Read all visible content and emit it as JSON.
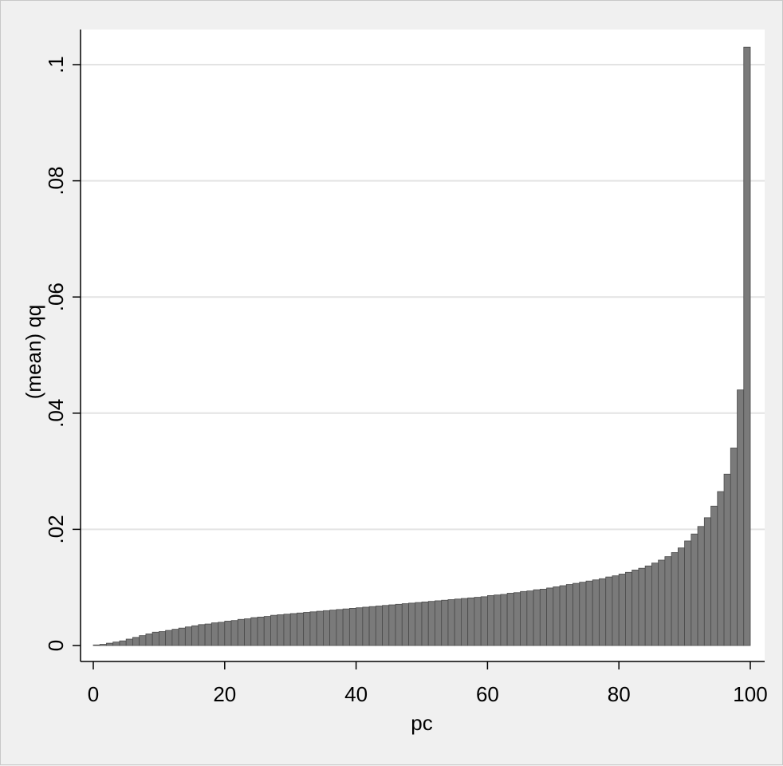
{
  "chart_data": {
    "type": "bar",
    "xlabel": "pc",
    "ylabel": "(mean) qq",
    "xlim": [
      0,
      100
    ],
    "ylim": [
      0,
      0.1
    ],
    "xticks": [
      0,
      20,
      40,
      60,
      80,
      100
    ],
    "xtick_labels": [
      "0",
      "20",
      "40",
      "60",
      "80",
      "100"
    ],
    "yticks": [
      0,
      0.02,
      0.04,
      0.06,
      0.08,
      0.1
    ],
    "ytick_labels": [
      "0",
      ".02",
      ".04",
      ".06",
      ".08",
      ".1"
    ],
    "grid": "horizontal",
    "legend": "none",
    "colors": {
      "bar_fill": "#7a7a7a",
      "bar_edge": "#4a4a4a",
      "plot_bg": "#ffffff",
      "grid": "#e3e3e3",
      "outer_bg": "#f0f0f0"
    },
    "x": [
      1,
      2,
      3,
      4,
      5,
      6,
      7,
      8,
      9,
      10,
      11,
      12,
      13,
      14,
      15,
      16,
      17,
      18,
      19,
      20,
      21,
      22,
      23,
      24,
      25,
      26,
      27,
      28,
      29,
      30,
      31,
      32,
      33,
      34,
      35,
      36,
      37,
      38,
      39,
      40,
      41,
      42,
      43,
      44,
      45,
      46,
      47,
      48,
      49,
      50,
      51,
      52,
      53,
      54,
      55,
      56,
      57,
      58,
      59,
      60,
      61,
      62,
      63,
      64,
      65,
      66,
      67,
      68,
      69,
      70,
      71,
      72,
      73,
      74,
      75,
      76,
      77,
      78,
      79,
      80,
      81,
      82,
      83,
      84,
      85,
      86,
      87,
      88,
      89,
      90,
      91,
      92,
      93,
      94,
      95,
      96,
      97,
      98,
      99,
      100
    ],
    "values": [
      0.0001,
      0.0002,
      0.0004,
      0.0006,
      0.0008,
      0.0011,
      0.0014,
      0.0017,
      0.002,
      0.0023,
      0.0024,
      0.0026,
      0.0028,
      0.003,
      0.0032,
      0.0034,
      0.0036,
      0.0037,
      0.0039,
      0.004,
      0.0042,
      0.0043,
      0.0045,
      0.0046,
      0.0048,
      0.0049,
      0.005,
      0.0052,
      0.0053,
      0.0054,
      0.0055,
      0.0056,
      0.0057,
      0.0058,
      0.0059,
      0.006,
      0.0061,
      0.0062,
      0.0063,
      0.0064,
      0.0065,
      0.0066,
      0.0067,
      0.0068,
      0.0069,
      0.007,
      0.0071,
      0.0072,
      0.0073,
      0.0074,
      0.0075,
      0.0076,
      0.0077,
      0.0078,
      0.0079,
      0.008,
      0.0081,
      0.0082,
      0.0083,
      0.0084,
      0.0086,
      0.0087,
      0.0088,
      0.009,
      0.0091,
      0.0093,
      0.0094,
      0.0096,
      0.0097,
      0.0099,
      0.0101,
      0.0103,
      0.0105,
      0.0107,
      0.0109,
      0.0111,
      0.0113,
      0.0115,
      0.0118,
      0.012,
      0.0123,
      0.0126,
      0.013,
      0.0133,
      0.0137,
      0.0142,
      0.0147,
      0.0153,
      0.016,
      0.0168,
      0.018,
      0.0192,
      0.0205,
      0.022,
      0.024,
      0.0265,
      0.0295,
      0.034,
      0.044,
      0.103
    ]
  }
}
